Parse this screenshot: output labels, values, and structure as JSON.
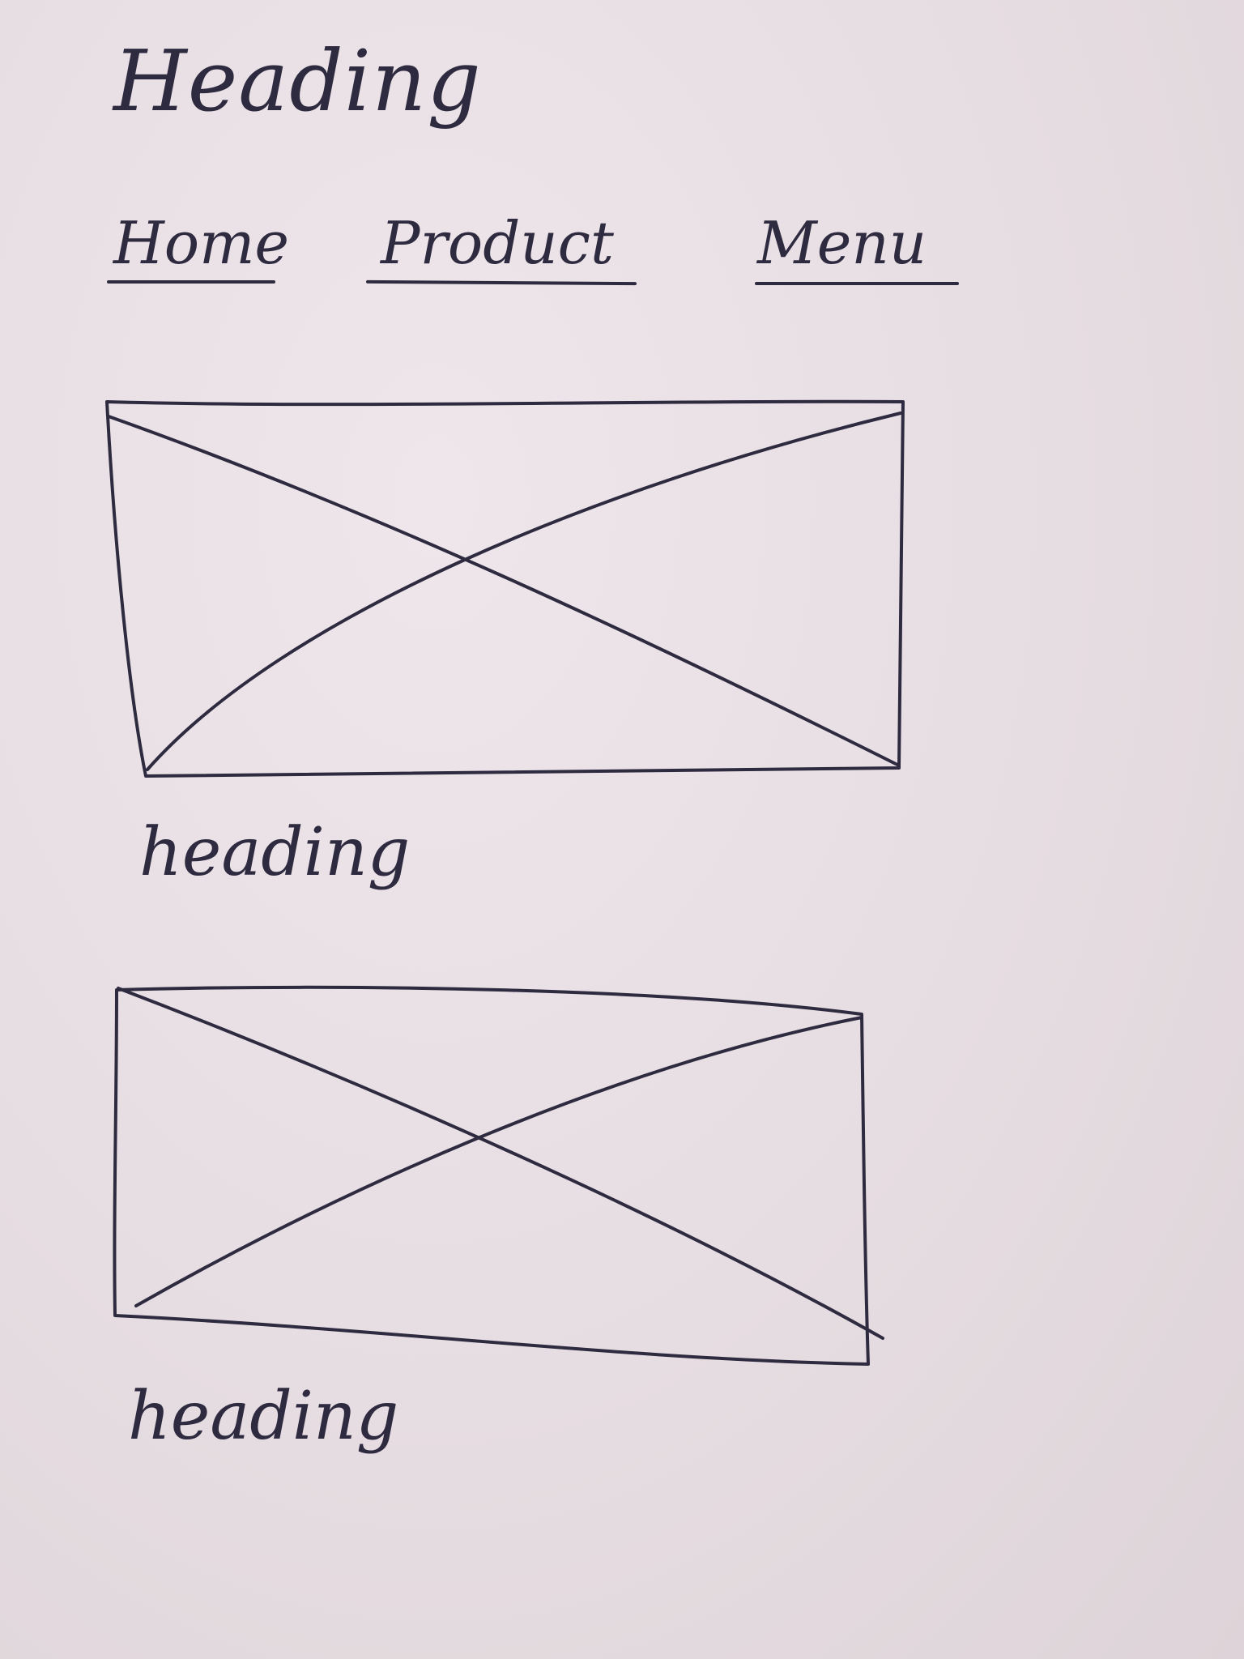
{
  "header": {
    "title": "Heading"
  },
  "nav": {
    "items": [
      {
        "label": "Home"
      },
      {
        "label": "Product"
      },
      {
        "label": "Menu"
      }
    ]
  },
  "sections": [
    {
      "heading": "heading"
    },
    {
      "heading": "heading"
    }
  ],
  "colors": {
    "ink": "#2e2a3f",
    "paper": "#e6dde2"
  }
}
